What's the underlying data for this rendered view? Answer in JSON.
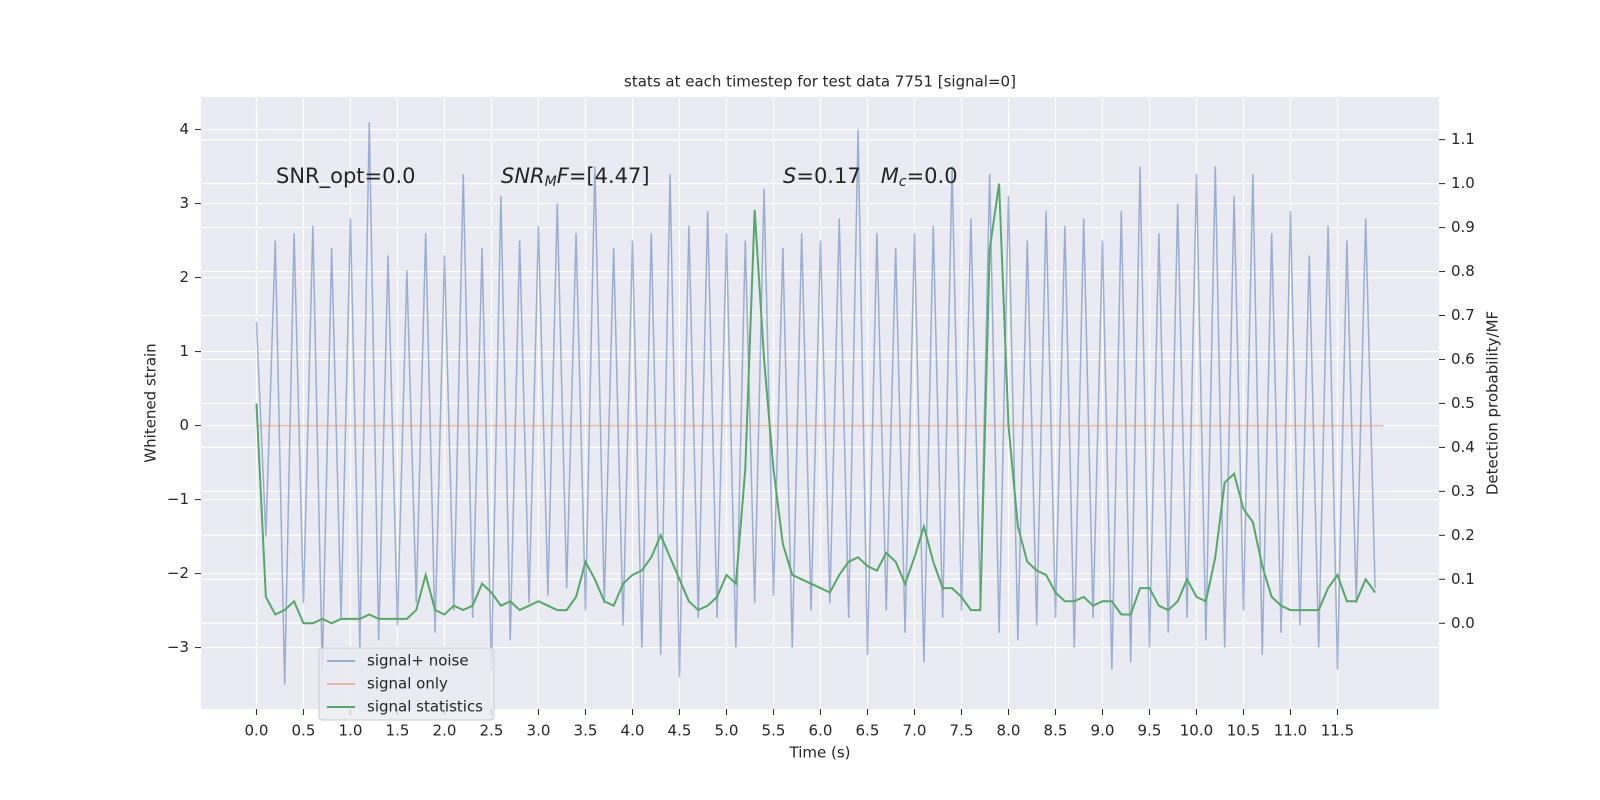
{
  "chart_data": {
    "type": "line",
    "title": "stats at each timestep for test data 7751 [signal=0]",
    "xlabel": "Time (s)",
    "ylabel": "Whitened strain",
    "y2label": "Detection probability/MF",
    "annotations": [
      {
        "parts": [
          {
            "text": "SNR_opt=0.0"
          }
        ]
      },
      {
        "parts": [
          {
            "text": "SNR",
            "italic": true
          },
          {
            "text": "M",
            "italic": true,
            "sub": true
          },
          {
            "text": "F",
            "italic": true
          },
          {
            "text": "=[4.47]"
          }
        ]
      },
      {
        "parts": [
          {
            "text": "S",
            "italic": true
          },
          {
            "text": "=0.17   "
          },
          {
            "text": "M",
            "italic": true
          },
          {
            "text": "c",
            "italic": true,
            "sub": true
          },
          {
            "text": "=0.0"
          }
        ]
      }
    ],
    "xlim": [
      -0.59,
      12.58
    ],
    "ylim": [
      -3.83,
      4.44
    ],
    "y2lim": [
      -0.195,
      1.197
    ],
    "xticks": [
      {
        "value": 0,
        "label": "0.0"
      },
      0.5,
      {
        "value": 1,
        "label": "1.0"
      },
      1.5,
      {
        "value": 2,
        "label": "2.0"
      },
      2.5,
      {
        "value": 3,
        "label": "3.0"
      },
      3.5,
      {
        "value": 4,
        "label": "4.0"
      },
      4.5,
      {
        "value": 5,
        "label": "5.0"
      },
      5.5,
      {
        "value": 6,
        "label": "6.0"
      },
      6.5,
      {
        "value": 7,
        "label": "7.0"
      },
      7.5,
      {
        "value": 8,
        "label": "8.0"
      },
      8.5,
      {
        "value": 9,
        "label": "9.0"
      },
      9.5,
      {
        "value": 10,
        "label": "10.0"
      },
      10.5,
      {
        "value": 11,
        "label": "11.0"
      },
      11.5
    ],
    "yticks": [
      {
        "value": -3,
        "label": "−3"
      },
      {
        "value": -2,
        "label": "−2"
      },
      {
        "value": -1,
        "label": "−1"
      },
      0,
      1,
      2,
      3,
      4
    ],
    "y2ticks": [
      {
        "value": 0,
        "label": "0.0"
      },
      0.1,
      0.2,
      0.3,
      0.4,
      0.5,
      0.6,
      0.7,
      0.8,
      0.9,
      {
        "value": 1,
        "label": "1.0"
      },
      1.1
    ],
    "grid": true,
    "background": "#eaeaf2",
    "legend": "lower left",
    "series": [
      {
        "name": "signal+ noise",
        "color": "#4c72b0",
        "opacity": 0.5,
        "x": [
          0,
          0.1,
          0.2,
          0.3,
          0.4,
          0.5,
          0.6,
          0.7,
          0.8,
          0.9,
          1,
          1.1,
          1.2,
          1.3,
          1.4,
          1.5,
          1.6,
          1.7,
          1.8,
          1.9,
          2,
          2.1,
          2.2,
          2.3,
          2.4,
          2.5,
          2.6,
          2.7,
          2.8,
          2.9,
          3,
          3.1,
          3.2,
          3.3,
          3.4,
          3.5,
          3.6,
          3.7,
          3.8,
          3.9,
          4,
          4.1,
          4.2,
          4.3,
          4.4,
          4.5,
          4.6,
          4.7,
          4.8,
          4.9,
          5,
          5.1,
          5.2,
          5.3,
          5.4,
          5.5,
          5.6,
          5.7,
          5.8,
          5.9,
          6,
          6.1,
          6.2,
          6.3,
          6.4,
          6.5,
          6.6,
          6.7,
          6.8,
          6.9,
          7,
          7.1,
          7.2,
          7.3,
          7.4,
          7.5,
          7.6,
          7.7,
          7.8,
          7.9,
          8,
          8.1,
          8.2,
          8.3,
          8.4,
          8.5,
          8.6,
          8.7,
          8.8,
          8.9,
          9,
          9.1,
          9.2,
          9.3,
          9.4,
          9.5,
          9.6,
          9.7,
          9.8,
          9.9,
          10,
          10.1,
          10.2,
          10.3,
          10.4,
          10.5,
          10.6,
          10.7,
          10.8,
          10.9,
          11,
          11.1,
          11.2,
          11.3,
          11.4,
          11.5,
          11.6,
          11.7,
          11.8,
          11.9
        ],
        "values": [
          1.4,
          -1.5,
          2.5,
          -3.5,
          2.6,
          -2.4,
          2.7,
          -3.3,
          2.4,
          -2.6,
          2.8,
          -3.0,
          4.1,
          -2.9,
          2.3,
          -2.7,
          2.1,
          -2.4,
          2.6,
          -2.8,
          2.3,
          -2.5,
          3.4,
          -2.6,
          2.4,
          -3.3,
          3.1,
          -2.9,
          2.5,
          -2.4,
          2.7,
          -2.3,
          3.0,
          -2.2,
          2.6,
          -2.5,
          3.5,
          -2.4,
          2.4,
          -2.7,
          2.5,
          -3.0,
          2.6,
          -3.1,
          3.4,
          -3.4,
          2.7,
          -2.6,
          2.9,
          -2.6,
          2.6,
          -3.0,
          2.5,
          -2.4,
          3.2,
          -2.3,
          2.4,
          -3.0,
          2.6,
          -2.5,
          2.5,
          -2.4,
          2.8,
          -2.6,
          4.0,
          -3.1,
          2.6,
          -2.5,
          2.4,
          -2.8,
          2.6,
          -3.2,
          2.7,
          -2.6,
          3.5,
          -2.5,
          2.8,
          -2.4,
          3.4,
          -2.8,
          3.1,
          -2.9,
          2.5,
          -2.7,
          2.9,
          -2.6,
          2.7,
          -3.0,
          2.8,
          -2.6,
          2.5,
          -3.3,
          2.9,
          -3.2,
          3.5,
          -3.0,
          2.6,
          -2.8,
          3.0,
          -2.6,
          3.4,
          -2.9,
          3.5,
          -3.0,
          3.1,
          -2.5,
          3.4,
          -3.1,
          2.6,
          -2.8,
          2.9,
          -2.7,
          2.3,
          -3.0,
          2.7,
          -3.3,
          2.5,
          -2.4,
          2.8,
          -2.2
        ]
      },
      {
        "name": "signal only",
        "color": "#dd8452",
        "opacity": 0.5,
        "x": [
          0,
          11.99
        ],
        "values": [
          0,
          0
        ]
      },
      {
        "name": "signal statistics",
        "color": "#55a868",
        "opacity": 1,
        "axis": "y2",
        "x": [
          0,
          0.1,
          0.2,
          0.3,
          0.4,
          0.5,
          0.6,
          0.7,
          0.8,
          0.9,
          1,
          1.1,
          1.2,
          1.3,
          1.4,
          1.5,
          1.6,
          1.7,
          1.8,
          1.9,
          2,
          2.1,
          2.2,
          2.3,
          2.4,
          2.5,
          2.6,
          2.7,
          2.8,
          2.9,
          3,
          3.1,
          3.2,
          3.3,
          3.4,
          3.5,
          3.6,
          3.7,
          3.8,
          3.9,
          4,
          4.1,
          4.2,
          4.3,
          4.4,
          4.5,
          4.6,
          4.7,
          4.8,
          4.9,
          5,
          5.1,
          5.2,
          5.3,
          5.4,
          5.5,
          5.6,
          5.7,
          5.8,
          5.9,
          6,
          6.1,
          6.2,
          6.3,
          6.4,
          6.5,
          6.6,
          6.7,
          6.8,
          6.9,
          7,
          7.1,
          7.2,
          7.3,
          7.4,
          7.5,
          7.6,
          7.7,
          7.8,
          7.9,
          8,
          8.1,
          8.2,
          8.3,
          8.4,
          8.5,
          8.6,
          8.7,
          8.8,
          8.9,
          9,
          9.1,
          9.2,
          9.3,
          9.4,
          9.5,
          9.6,
          9.7,
          9.8,
          9.9,
          10,
          10.1,
          10.2,
          10.3,
          10.4,
          10.5,
          10.6,
          10.7,
          10.8,
          10.9,
          11,
          11.1,
          11.2,
          11.3,
          11.4,
          11.5,
          11.6,
          11.7,
          11.8,
          11.9
        ],
        "values": [
          0.5,
          0.06,
          0.02,
          0.03,
          0.05,
          0.0,
          0.0,
          0.01,
          0.0,
          0.01,
          0.01,
          0.01,
          0.02,
          0.01,
          0.01,
          0.01,
          0.01,
          0.03,
          0.11,
          0.03,
          0.02,
          0.04,
          0.03,
          0.04,
          0.09,
          0.07,
          0.04,
          0.05,
          0.03,
          0.04,
          0.05,
          0.04,
          0.03,
          0.03,
          0.06,
          0.14,
          0.1,
          0.05,
          0.04,
          0.09,
          0.11,
          0.12,
          0.15,
          0.2,
          0.15,
          0.1,
          0.05,
          0.03,
          0.04,
          0.06,
          0.11,
          0.09,
          0.35,
          0.94,
          0.6,
          0.35,
          0.18,
          0.11,
          0.1,
          0.09,
          0.08,
          0.07,
          0.11,
          0.14,
          0.15,
          0.13,
          0.12,
          0.16,
          0.14,
          0.09,
          0.15,
          0.22,
          0.14,
          0.08,
          0.08,
          0.06,
          0.03,
          0.03,
          0.85,
          1.0,
          0.45,
          0.22,
          0.14,
          0.12,
          0.11,
          0.07,
          0.05,
          0.05,
          0.06,
          0.04,
          0.05,
          0.05,
          0.02,
          0.02,
          0.08,
          0.08,
          0.04,
          0.03,
          0.05,
          0.1,
          0.06,
          0.05,
          0.15,
          0.32,
          0.34,
          0.26,
          0.23,
          0.13,
          0.06,
          0.04,
          0.03,
          0.03,
          0.03,
          0.03,
          0.08,
          0.11,
          0.05,
          0.05,
          0.1,
          0.07
        ]
      }
    ]
  }
}
